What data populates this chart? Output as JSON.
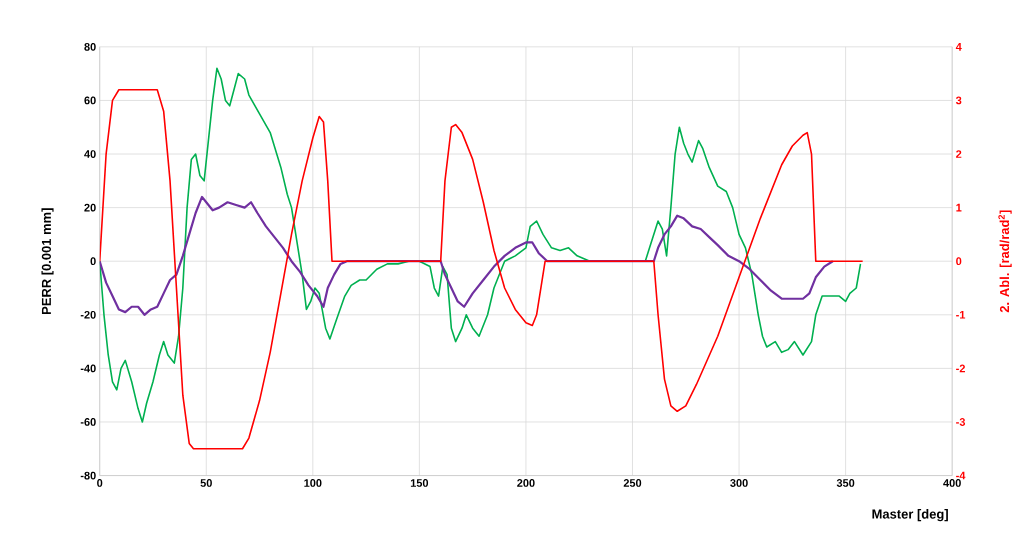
{
  "chart_data": {
    "type": "line",
    "xlabel": "Master [deg]",
    "ylabel": "PERR [0.001 mm]",
    "y2label": "2. Abl. [rad/rad$^{2}$]",
    "xlim": [
      0,
      400
    ],
    "xticks": [
      0,
      50,
      100,
      150,
      200,
      250,
      300,
      350,
      400
    ],
    "ylim": [
      -80,
      80
    ],
    "yticks": [
      -80,
      -60,
      -40,
      -20,
      0,
      20,
      40,
      60,
      80
    ],
    "y2lim": [
      -4,
      4
    ],
    "y2ticks": [
      -4,
      -3,
      -2,
      -1,
      0,
      1,
      2,
      3,
      4
    ],
    "grid": true,
    "marker": "none",
    "line_style": "solid",
    "series": [
      {
        "color": "#00b050",
        "x": [
          0,
          2,
          4,
          6,
          8,
          10,
          12,
          15,
          18,
          20,
          22,
          25,
          28,
          30,
          32,
          35,
          37,
          39,
          41,
          43,
          45,
          47,
          49,
          51,
          53,
          55,
          57,
          59,
          61,
          63,
          65,
          68,
          70,
          75,
          80,
          85,
          88,
          90,
          93,
          95,
          97,
          99,
          101,
          103,
          106,
          108,
          111,
          115,
          118,
          122,
          125,
          130,
          135,
          140,
          145,
          150,
          155,
          157,
          159,
          161,
          163,
          165,
          167,
          170,
          172,
          175,
          178,
          182,
          185,
          190,
          195,
          200,
          202,
          205,
          208,
          212,
          216,
          220,
          224,
          230,
          240,
          250,
          256,
          258,
          262,
          264,
          266,
          268,
          270,
          272,
          274,
          276,
          278,
          281,
          283,
          286,
          290,
          294,
          297,
          300,
          303,
          306,
          309,
          311,
          313,
          317,
          320,
          323,
          326,
          330,
          334,
          336,
          339,
          343,
          347,
          350,
          352,
          355,
          357
        ],
        "values": [
          0,
          -20,
          -35,
          -45,
          -48,
          -40,
          -37,
          -45,
          -55,
          -60,
          -53,
          -45,
          -35,
          -30,
          -35,
          -38,
          -28,
          -10,
          20,
          38,
          40,
          32,
          30,
          45,
          60,
          72,
          68,
          60,
          58,
          64,
          70,
          68,
          62,
          55,
          48,
          35,
          25,
          20,
          5,
          -5,
          -18,
          -15,
          -10,
          -12,
          -25,
          -29,
          -22,
          -13,
          -9,
          -7,
          -7,
          -3,
          -1,
          -1,
          0,
          0,
          -2,
          -10,
          -13,
          -2,
          -5,
          -25,
          -30,
          -25,
          -20,
          -25,
          -28,
          -20,
          -10,
          0,
          2,
          5,
          13,
          15,
          10,
          5,
          4,
          5,
          2,
          0,
          0,
          0,
          0,
          5,
          15,
          12,
          2,
          20,
          40,
          50,
          44,
          40,
          37,
          45,
          42,
          35,
          28,
          26,
          20,
          10,
          5,
          -5,
          -20,
          -28,
          -32,
          -30,
          -34,
          -33,
          -30,
          -35,
          -30,
          -20,
          -13,
          -13,
          -13,
          -15,
          -12,
          -10,
          -1
        ]
      },
      {
        "color": "#7030a0",
        "x": [
          0,
          3,
          6,
          9,
          12,
          15,
          18,
          21,
          24,
          27,
          30,
          33,
          36,
          39,
          42,
          45,
          48,
          50,
          53,
          56,
          60,
          64,
          68,
          71,
          74,
          78,
          82,
          86,
          90,
          94,
          98,
          102,
          105,
          107,
          110,
          113,
          116,
          125,
          140,
          155,
          160,
          162,
          165,
          168,
          171,
          175,
          180,
          185,
          190,
          195,
          200,
          203,
          206,
          210,
          220,
          240,
          255,
          260,
          262,
          265,
          268,
          271,
          274,
          278,
          282,
          286,
          290,
          295,
          300,
          305,
          310,
          315,
          320,
          325,
          330,
          333,
          336,
          340,
          344
        ],
        "values": [
          0,
          -8,
          -13,
          -18,
          -19,
          -17,
          -17,
          -20,
          -18,
          -17,
          -12,
          -7,
          -5,
          2,
          10,
          18,
          24,
          22,
          19,
          20,
          22,
          21,
          20,
          22,
          18,
          13,
          9,
          5,
          0,
          -4,
          -9,
          -13,
          -17,
          -10,
          -5,
          -1,
          0,
          0,
          0,
          0,
          0,
          -5,
          -10,
          -15,
          -17,
          -12,
          -7,
          -2,
          2,
          5,
          7,
          7,
          3,
          0,
          0,
          0,
          0,
          0,
          5,
          10,
          13,
          17,
          16,
          13,
          12,
          9,
          6,
          2,
          0,
          -3,
          -7,
          -11,
          -14,
          -14,
          -14,
          -12,
          -6,
          -2,
          0
        ]
      },
      {
        "color": "#ff0000",
        "axis": "y2",
        "x": [
          0,
          3,
          6,
          9,
          27,
          30,
          33,
          36,
          39,
          42,
          44,
          67,
          70,
          75,
          80,
          85,
          90,
          95,
          100,
          103,
          105,
          107,
          109,
          160,
          162,
          165,
          167,
          170,
          175,
          180,
          185,
          190,
          195,
          200,
          203,
          205,
          207,
          209,
          260,
          262,
          265,
          268,
          271,
          275,
          280,
          290,
          300,
          310,
          320,
          325,
          330,
          332,
          334,
          336,
          358
        ],
        "values": [
          0,
          2,
          3.0,
          3.2,
          3.2,
          2.8,
          1.5,
          -0.5,
          -2.5,
          -3.4,
          -3.5,
          -3.5,
          -3.3,
          -2.6,
          -1.7,
          -0.6,
          0.5,
          1.5,
          2.3,
          2.7,
          2.6,
          1.5,
          0,
          0,
          1.5,
          2.5,
          2.55,
          2.4,
          1.9,
          1.1,
          0.2,
          -0.5,
          -0.9,
          -1.15,
          -1.2,
          -1.0,
          -0.5,
          0,
          0,
          -1.0,
          -2.2,
          -2.7,
          -2.8,
          -2.7,
          -2.3,
          -1.4,
          -0.3,
          0.8,
          1.8,
          2.15,
          2.35,
          2.4,
          2.0,
          0,
          0
        ]
      }
    ]
  }
}
